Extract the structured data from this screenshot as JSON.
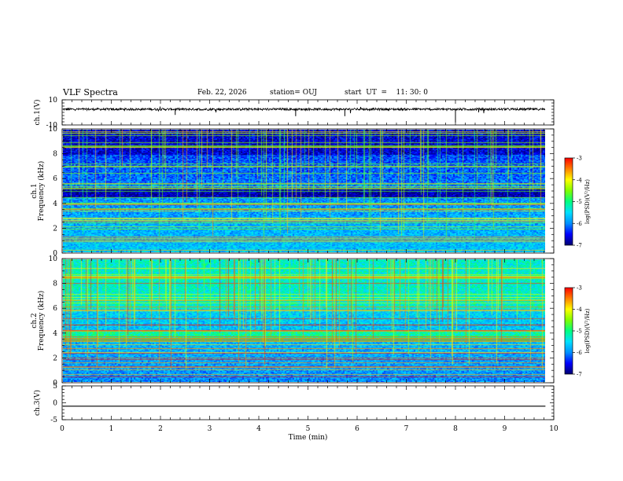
{
  "header": {
    "title": "VLF Spectra",
    "date": "Feb. 22, 2026",
    "station": "station= OUJ",
    "start": "start  UT  =    11: 30: 0"
  },
  "chart_data": [
    {
      "type": "line",
      "name": "ch1-waveform",
      "ylabel": "ch.1(V)",
      "ylim": [
        -10,
        10
      ],
      "yticks": [
        10,
        -10
      ],
      "xlim": [
        0,
        10
      ],
      "baseline": 2.5
    },
    {
      "type": "heatmap",
      "name": "ch1-spectrogram",
      "ylabel": "ch.1\nFrequency (kHz)",
      "ylabel_line1": "ch.1",
      "ylabel_line2": "Frequency (kHz)",
      "ylim": [
        0,
        10
      ],
      "yticks": [
        0,
        2,
        4,
        6,
        8,
        10
      ],
      "xlim": [
        0,
        9.83
      ],
      "colorbar": {
        "label": "log(PSD)(V²/Hz)",
        "range": [
          -7,
          -3
        ],
        "ticks": [
          -3,
          -4,
          -5,
          -6,
          -7
        ]
      }
    },
    {
      "type": "heatmap",
      "name": "ch2-spectrogram",
      "ylabel": "ch.2\nFrequency (kHz)",
      "ylabel_line1": "ch.2",
      "ylabel_line2": "Frequency (kHz)",
      "ylim": [
        0,
        10
      ],
      "yticks": [
        0,
        2,
        4,
        6,
        8,
        10
      ],
      "xlim": [
        0,
        9.83
      ],
      "colorbar": {
        "label": "log(PSD)(V²/Hz)",
        "range": [
          -7,
          -3
        ],
        "ticks": [
          -3,
          -4,
          -5,
          -6,
          -7
        ]
      }
    },
    {
      "type": "line",
      "name": "ch3-waveform",
      "ylabel": "ch.3(V)",
      "ylim": [
        -5,
        5
      ],
      "yticks": [
        5,
        0,
        -5
      ],
      "xlim": [
        0,
        10
      ],
      "values_constant": -1,
      "xlabel": "Time  (min)",
      "xticks": [
        0,
        1,
        2,
        3,
        4,
        5,
        6,
        7,
        8,
        9,
        10
      ]
    }
  ],
  "colors": {
    "colormap": [
      "#000070",
      "#0000ff",
      "#0090ff",
      "#00e0ff",
      "#00ff80",
      "#80ff00",
      "#ffff00",
      "#ff8000",
      "#ff0000",
      "#ffffff"
    ],
    "axis": "#000000"
  }
}
